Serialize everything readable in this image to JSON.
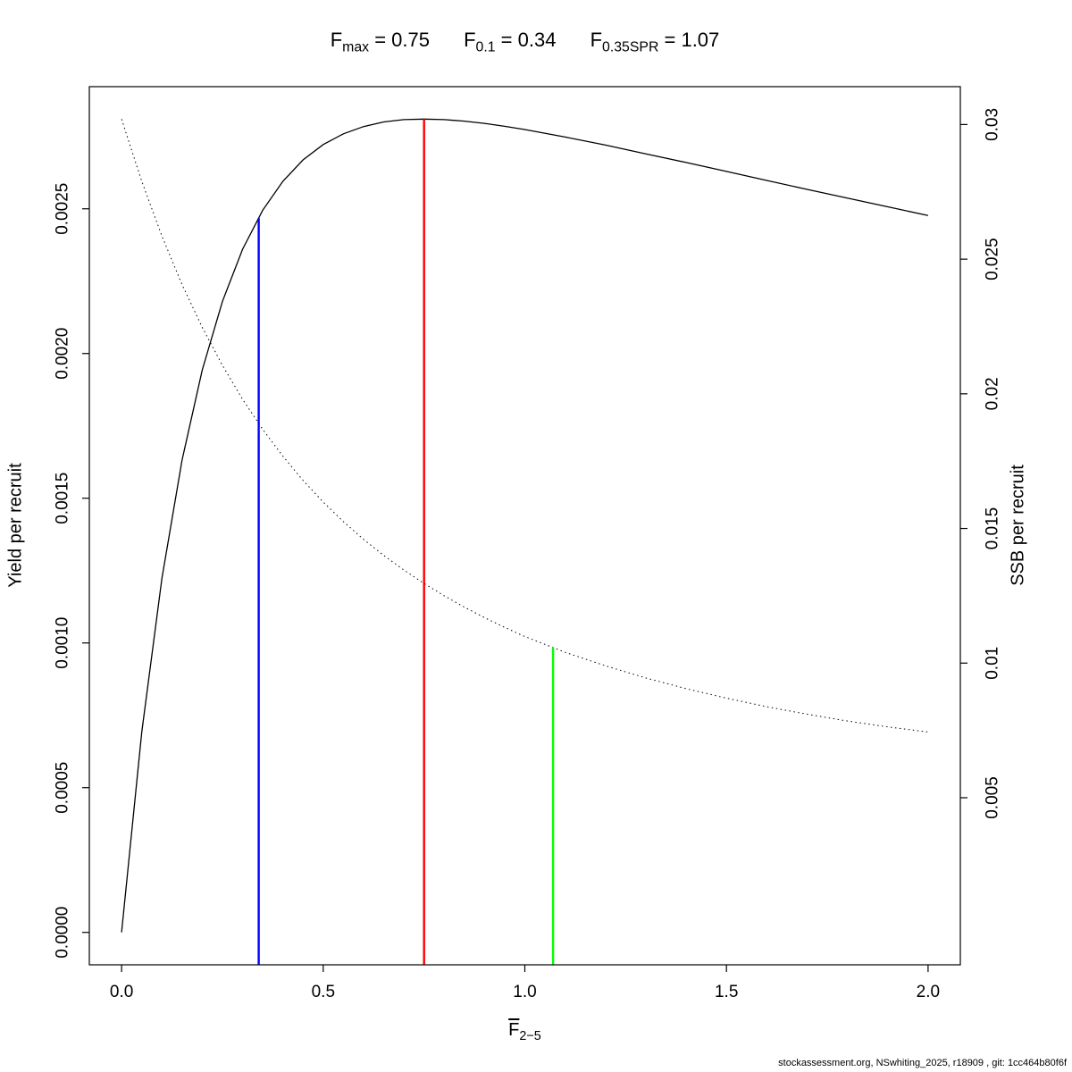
{
  "title": {
    "items": [
      {
        "base": "F",
        "sub": "max",
        "value": " = 0.75"
      },
      {
        "base": "F",
        "sub": "0.1",
        "value": " = 0.34"
      },
      {
        "base": "F",
        "sub": "0.35SPR",
        "value": " = 1.07"
      }
    ]
  },
  "x_axis_title": {
    "base": "F",
    "sub": "2−5"
  },
  "footer": {
    "text": "stockassessment.org, NSwhiting_2025, r18909 , git: 1cc464b80f6f"
  },
  "chart_data": {
    "type": "line",
    "title": "Fmax = 0.75  F0.1 = 0.34  F0.35SPR = 1.07",
    "x_axis": {
      "label": "F̄2−5",
      "range": [
        -0.08,
        2.08
      ],
      "ticks": [
        0,
        0.5,
        1.0,
        1.5,
        2.0
      ],
      "tick_labels": [
        "0.0",
        "0.5",
        "1.0",
        "1.5",
        "2.0"
      ]
    },
    "left_axis": {
      "label": "Yield per recruit",
      "range": [
        -0.000112,
        0.002922
      ],
      "ticks": [
        0.0,
        0.0005,
        0.001,
        0.0015,
        0.002,
        0.0025
      ],
      "tick_labels": [
        "0.0000",
        "0.0005",
        "0.0010",
        "0.0015",
        "0.0020",
        "0.0025"
      ]
    },
    "right_axis": {
      "label": "SSB per recruit",
      "range": [
        -0.001204,
        0.031407
      ],
      "ticks": [
        0.005,
        0.01,
        0.015,
        0.02,
        0.025,
        0.03
      ],
      "tick_labels": [
        "0.005",
        "0.01",
        "0.015",
        "0.02",
        "0.025",
        "0.03"
      ]
    },
    "grid": false,
    "legend": "none",
    "series": [
      {
        "id": "yield-curve",
        "name": "Yield per recruit",
        "axis": "left",
        "style": "solid",
        "color": "#000000",
        "x": [
          0,
          0.05,
          0.1,
          0.15,
          0.2,
          0.25,
          0.3,
          0.35,
          0.4,
          0.45,
          0.5,
          0.55,
          0.6,
          0.65,
          0.7,
          0.75,
          0.8,
          0.85,
          0.9,
          0.95,
          1.0,
          1.1,
          1.2,
          1.3,
          1.4,
          1.5,
          1.6,
          1.7,
          1.8,
          1.9,
          2.0
        ],
        "y": [
          0,
          0.000692,
          0.001224,
          0.001632,
          0.001943,
          0.00218,
          0.00236,
          0.002495,
          0.002595,
          0.002669,
          0.002722,
          0.002759,
          0.002784,
          0.0028,
          0.002808,
          0.00281,
          0.002808,
          0.002803,
          0.002795,
          0.002785,
          0.002774,
          0.002748,
          0.00272,
          0.00269,
          0.00266,
          0.002629,
          0.002598,
          0.002567,
          0.002537,
          0.002507,
          0.002477
        ]
      },
      {
        "id": "ssb-curve",
        "name": "SSB per recruit",
        "axis": "right",
        "style": "dotted",
        "color": "#000000",
        "x": [
          0,
          0.05,
          0.1,
          0.15,
          0.2,
          0.25,
          0.3,
          0.35,
          0.4,
          0.45,
          0.5,
          0.55,
          0.6,
          0.65,
          0.7,
          0.75,
          0.8,
          0.85,
          0.9,
          0.95,
          1.0,
          1.1,
          1.2,
          1.3,
          1.4,
          1.5,
          1.6,
          1.7,
          1.8,
          1.9,
          2.0
        ],
        "y": [
          0.0302,
          0.02789,
          0.025855,
          0.024057,
          0.022466,
          0.021055,
          0.0198,
          0.018682,
          0.017683,
          0.016787,
          0.015982,
          0.015255,
          0.014598,
          0.014,
          0.013456,
          0.012958,
          0.012501,
          0.012079,
          0.011689,
          0.011327,
          0.010989,
          0.0104,
          0.0099,
          0.00945,
          0.00905,
          0.0087,
          0.00838,
          0.0081,
          0.00785,
          0.00763,
          0.00744
        ]
      }
    ],
    "reference_lines": [
      {
        "id": "refline-f01",
        "name": "F0.1",
        "x": 0.34,
        "value": 0.34,
        "color": "#0000FF",
        "axis": "left",
        "top": 0.002468
      },
      {
        "id": "refline-fmax",
        "name": "Fmax",
        "x": 0.75,
        "value": 0.75,
        "color": "#FF0000",
        "axis": "left",
        "top": 0.00281
      },
      {
        "id": "refline-f035spr",
        "name": "F0.35SPR",
        "x": 1.07,
        "value": 1.07,
        "color": "#00FF00",
        "axis": "right",
        "top": 0.01058
      }
    ]
  }
}
